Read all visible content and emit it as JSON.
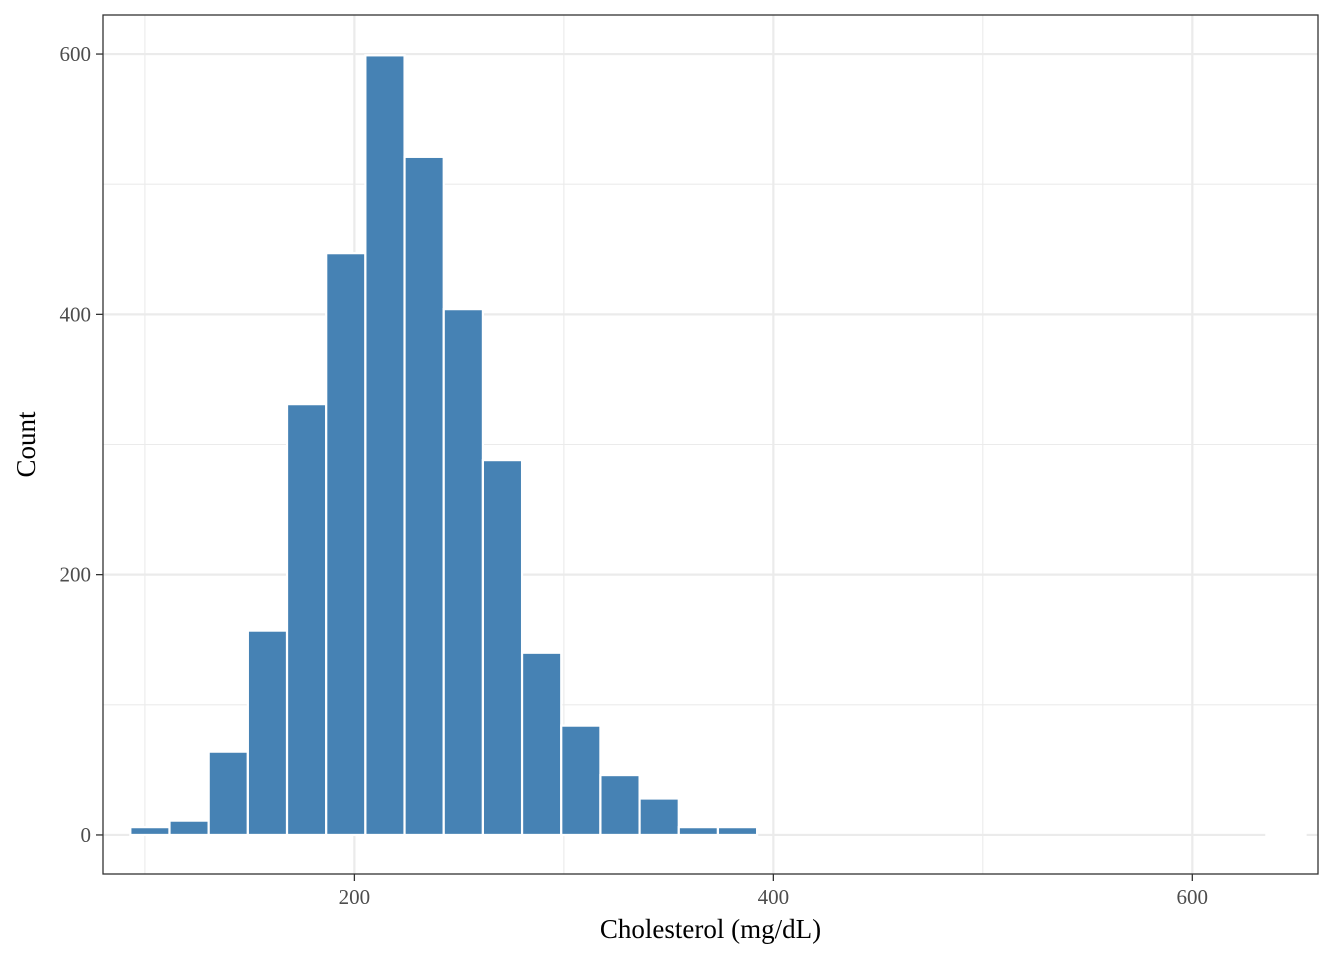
{
  "chart_data": {
    "type": "bar",
    "title": "",
    "xlabel": "Cholesterol (mg/dL)",
    "ylabel": "Count",
    "xlim": [
      80,
      660
    ],
    "ylim": [
      -30,
      630
    ],
    "x_ticks": [
      200,
      400,
      600
    ],
    "x_tick_labels": [
      "200",
      "400",
      "600"
    ],
    "y_ticks": [
      0,
      200,
      400,
      600
    ],
    "y_tick_labels": [
      "0",
      "200",
      "400",
      "600"
    ],
    "grid": true,
    "legend": "none",
    "bar_color": "#4682b4",
    "bar_outline_color": "#ffffff",
    "bin_width": 18.7,
    "bins": [
      {
        "x": 102.4,
        "count": 6
      },
      {
        "x": 121.1,
        "count": 11
      },
      {
        "x": 139.8,
        "count": 64
      },
      {
        "x": 158.5,
        "count": 157
      },
      {
        "x": 177.2,
        "count": 331
      },
      {
        "x": 195.9,
        "count": 447
      },
      {
        "x": 214.6,
        "count": 599
      },
      {
        "x": 233.3,
        "count": 521
      },
      {
        "x": 252.0,
        "count": 404
      },
      {
        "x": 270.7,
        "count": 288
      },
      {
        "x": 289.4,
        "count": 140
      },
      {
        "x": 308.1,
        "count": 84
      },
      {
        "x": 326.8,
        "count": 46
      },
      {
        "x": 345.5,
        "count": 28
      },
      {
        "x": 364.2,
        "count": 6
      },
      {
        "x": 382.9,
        "count": 6
      },
      {
        "x": 401.6,
        "count": 0
      },
      {
        "x": 420.3,
        "count": 0
      },
      {
        "x": 439.0,
        "count": 0
      },
      {
        "x": 457.7,
        "count": 0
      },
      {
        "x": 476.4,
        "count": 0
      },
      {
        "x": 495.1,
        "count": 0
      },
      {
        "x": 513.8,
        "count": 0
      },
      {
        "x": 532.5,
        "count": 0
      },
      {
        "x": 551.2,
        "count": 0
      },
      {
        "x": 569.9,
        "count": 0
      },
      {
        "x": 588.6,
        "count": 0
      },
      {
        "x": 607.3,
        "count": 0
      },
      {
        "x": 626.0,
        "count": 0
      },
      {
        "x": 644.7,
        "count": 1
      }
    ]
  }
}
